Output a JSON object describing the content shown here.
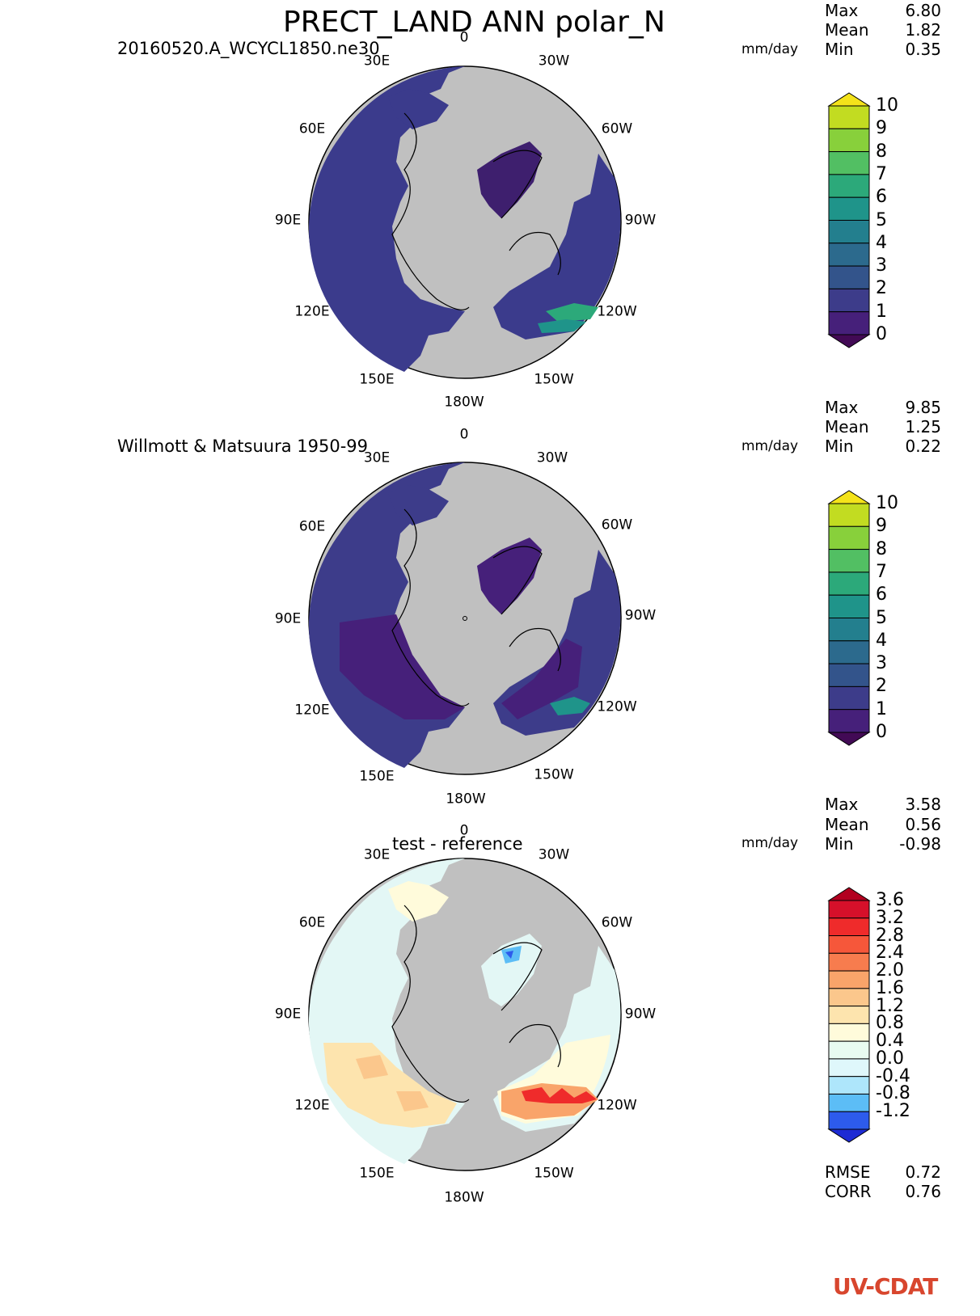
{
  "title": "PRECT_LAND ANN polar_N",
  "colors": {
    "land_gray": "#c0c0c0",
    "coast": "#000000",
    "mean_fill": "#3b3b8c",
    "dark_fill": "#3e1f6e"
  },
  "panels": [
    {
      "subtitle": "20160520.A_WCYCL1850.ne30",
      "units": "mm/day",
      "stats": [
        {
          "name": "Max",
          "value": "6.80"
        },
        {
          "name": "Mean",
          "value": "1.82"
        },
        {
          "name": "Min",
          "value": "0.35"
        }
      ],
      "lon_labels": [
        "0",
        "30E",
        "30W",
        "60E",
        "60W",
        "90E",
        "90W",
        "120E",
        "120W",
        "150E",
        "150W",
        "180W"
      ],
      "colorbar": {
        "labels": [
          "10",
          "9",
          "8",
          "7",
          "6",
          "5",
          "4",
          "3",
          "2",
          "1",
          "0"
        ],
        "colors": [
          "#f4e31a",
          "#c2dc21",
          "#88d03b",
          "#52bf63",
          "#2ca97a",
          "#1f948a",
          "#237f8e",
          "#2c6a8d",
          "#33548b",
          "#3d3c8a",
          "#46207a",
          "#420a55"
        ]
      },
      "fill": "#3b3b8c"
    },
    {
      "subtitle": "Willmott & Matsuura 1950-99",
      "units": "mm/day",
      "stats": [
        {
          "name": "Max",
          "value": "9.85"
        },
        {
          "name": "Mean",
          "value": "1.25"
        },
        {
          "name": "Min",
          "value": "0.22"
        }
      ],
      "lon_labels": [
        "0",
        "30E",
        "30W",
        "60E",
        "60W",
        "90E",
        "90W",
        "120E",
        "120W",
        "150E",
        "150W",
        "180W"
      ],
      "colorbar": {
        "labels": [
          "10",
          "9",
          "8",
          "7",
          "6",
          "5",
          "4",
          "3",
          "2",
          "1",
          "0"
        ],
        "colors": [
          "#f4e31a",
          "#c2dc21",
          "#88d03b",
          "#52bf63",
          "#2ca97a",
          "#1f948a",
          "#237f8e",
          "#2c6a8d",
          "#33548b",
          "#3d3c8a",
          "#46207a",
          "#420a55"
        ]
      },
      "fill": "#3e2d7e"
    },
    {
      "subtitle": "test - reference",
      "units": "mm/day",
      "stats": [
        {
          "name": "Max",
          "value": "3.58"
        },
        {
          "name": "Mean",
          "value": "0.56"
        },
        {
          "name": "Min",
          "value": "-0.98"
        }
      ],
      "lon_labels": [
        "0",
        "30E",
        "30W",
        "60E",
        "60W",
        "90E",
        "90W",
        "120E",
        "120W",
        "150E",
        "150W",
        "180W"
      ],
      "colorbar": {
        "labels": [
          "3.6",
          "3.2",
          "2.8",
          "2.4",
          "2.0",
          "1.6",
          "1.2",
          "0.8",
          "0.4",
          "0.0",
          "-0.4",
          "-0.8",
          "-1.2"
        ],
        "colors": [
          "#b2001f",
          "#d6102a",
          "#ef2b2b",
          "#f6573a",
          "#f77c4e",
          "#f9a46a",
          "#fbc78c",
          "#fde4ae",
          "#fffbdb",
          "#e8fbf1",
          "#dff7fb",
          "#aee6fb",
          "#5cbdf6",
          "#2d5bec",
          "#1d2bd4"
        ]
      },
      "fill": "#e3f7f5"
    }
  ],
  "metrics": [
    {
      "name": "RMSE",
      "value": "0.72"
    },
    {
      "name": "CORR",
      "value": "0.76"
    }
  ],
  "logo": {
    "text": "UV-CDAT"
  }
}
